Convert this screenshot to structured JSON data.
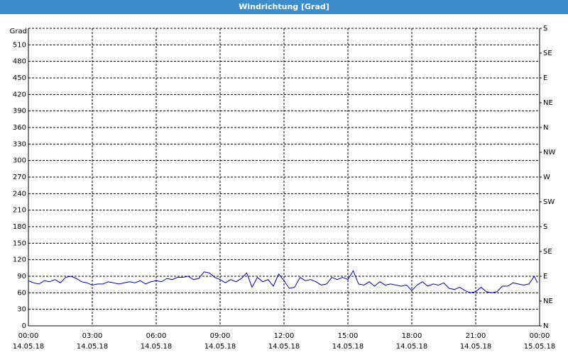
{
  "chart_data": {
    "type": "line",
    "title": "Windrichtung [Grad]",
    "y_label": "Grad",
    "xlim": [
      0,
      24
    ],
    "ylim": [
      0,
      540
    ],
    "y2lim": [
      0,
      540
    ],
    "grid": true,
    "xticks": [
      {
        "value": 0,
        "label": "00:00",
        "date": "14.05.18"
      },
      {
        "value": 3,
        "label": "03:00",
        "date": "14.05.18"
      },
      {
        "value": 6,
        "label": "06:00",
        "date": "14.05.18"
      },
      {
        "value": 9,
        "label": "09:00",
        "date": "14.05.18"
      },
      {
        "value": 12,
        "label": "12:00",
        "date": "14.05.18"
      },
      {
        "value": 15,
        "label": "15:00",
        "date": "14.05.18"
      },
      {
        "value": 18,
        "label": "18:00",
        "date": "14.05.18"
      },
      {
        "value": 21,
        "label": "21:00",
        "date": "14.05.18"
      },
      {
        "value": 24,
        "label": "00:00",
        "date": "15.05.18"
      }
    ],
    "yticks": [
      0,
      30,
      60,
      90,
      120,
      150,
      180,
      210,
      240,
      270,
      300,
      330,
      360,
      390,
      420,
      450,
      480,
      510
    ],
    "y2ticks": [
      {
        "value": 0,
        "label": "N"
      },
      {
        "value": 45,
        "label": "NE"
      },
      {
        "value": 90,
        "label": "E"
      },
      {
        "value": 135,
        "label": "SE"
      },
      {
        "value": 180,
        "label": "S"
      },
      {
        "value": 225,
        "label": "SW"
      },
      {
        "value": 270,
        "label": "W"
      },
      {
        "value": 315,
        "label": "NW"
      },
      {
        "value": 360,
        "label": "N"
      },
      {
        "value": 405,
        "label": "NE"
      },
      {
        "value": 450,
        "label": "E"
      },
      {
        "value": 495,
        "label": "SE"
      },
      {
        "value": 540,
        "label": "S"
      }
    ],
    "x": [
      0,
      0.25,
      0.5,
      0.75,
      1,
      1.25,
      1.5,
      1.75,
      2,
      2.25,
      2.5,
      2.75,
      3,
      3.25,
      3.5,
      3.75,
      4,
      4.25,
      4.5,
      4.75,
      5,
      5.25,
      5.5,
      5.75,
      6,
      6.25,
      6.5,
      6.75,
      7,
      7.25,
      7.5,
      7.75,
      8,
      8.25,
      8.5,
      8.75,
      9,
      9.25,
      9.5,
      9.75,
      10,
      10.25,
      10.5,
      10.75,
      11,
      11.25,
      11.5,
      11.75,
      12,
      12.25,
      12.5,
      12.75,
      13,
      13.25,
      13.5,
      13.75,
      14,
      14.25,
      14.5,
      14.75,
      15,
      15.25,
      15.5,
      15.75,
      16,
      16.25,
      16.5,
      16.75,
      17,
      17.25,
      17.5,
      17.75,
      18,
      18.25,
      18.5,
      18.75,
      19,
      19.25,
      19.5,
      19.75,
      20,
      20.25,
      20.5,
      20.75,
      21,
      21.25,
      21.5,
      21.75,
      22,
      22.25,
      22.5,
      22.75,
      23,
      23.25,
      23.5,
      23.75,
      23.9
    ],
    "series": [
      {
        "color": "#0000c0",
        "values": [
          82,
          78,
          76,
          82,
          80,
          84,
          78,
          88,
          90,
          86,
          80,
          78,
          74,
          76,
          76,
          80,
          78,
          76,
          78,
          80,
          78,
          82,
          76,
          80,
          82,
          80,
          86,
          84,
          88,
          88,
          90,
          84,
          86,
          98,
          96,
          88,
          84,
          78,
          84,
          80,
          86,
          96,
          70,
          88,
          80,
          84,
          72,
          94,
          82,
          68,
          70,
          88,
          82,
          84,
          80,
          74,
          76,
          88,
          84,
          88,
          84,
          100,
          76,
          74,
          80,
          72,
          80,
          74,
          76,
          74,
          72,
          74,
          64,
          74,
          80,
          72,
          76,
          74,
          78,
          68,
          66,
          70,
          64,
          60,
          62,
          70,
          62,
          60,
          62,
          72,
          72,
          78,
          76,
          74,
          76,
          90,
          78
        ]
      }
    ]
  }
}
